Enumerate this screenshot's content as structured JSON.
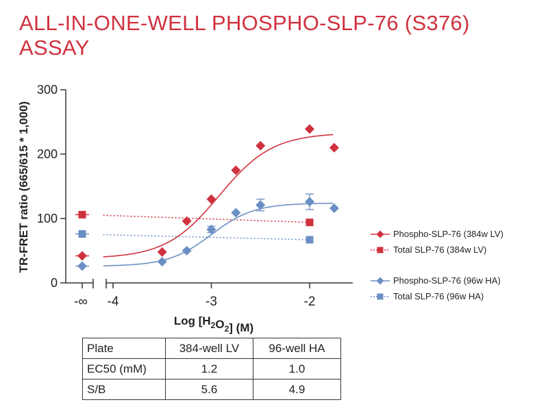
{
  "title": {
    "line1": "ALL-IN-ONE-WELL PHOSPHO-SLP-76 (S376)",
    "line2": "ASSAY"
  },
  "chart_data": {
    "type": "scatter",
    "xlabel": "Log [H2O2]  (M)",
    "ylabel": "TR-FRET ratio (665/615 * 1,000)",
    "xlim": [
      -4.1,
      -1.55
    ],
    "ylim": [
      0,
      300
    ],
    "x_ticks": [
      "-4",
      "-3",
      "-2"
    ],
    "y_ticks": [
      "0",
      "100",
      "200",
      "300"
    ],
    "break_tick": "-∞",
    "legend_placement": "right",
    "series": [
      {
        "name": "Phospho-SLP-76 (384w LV)",
        "color": "#d0313f",
        "marker": "diamond",
        "line": "solid",
        "baseline_value": 42,
        "x": [
          -3.5,
          -3.25,
          -3.0,
          -2.75,
          -2.5,
          -2.0,
          -1.75
        ],
        "y": [
          48,
          96,
          130,
          175,
          213,
          239,
          210
        ],
        "fit": {
          "bottom": 38,
          "top": 233,
          "logEC50": -2.92,
          "hill": 1.6
        }
      },
      {
        "name": "Total SLP-76 (384w LV)",
        "color": "#d0313f",
        "marker": "square",
        "line": "dotted",
        "baseline_value": 106,
        "x": [
          -2.0
        ],
        "y": [
          94
        ],
        "line_from": [
          -4.1,
          105
        ],
        "line_to": [
          -2.0,
          94
        ]
      },
      {
        "name": "Phospho-SLP-76 (96w HA)",
        "color": "#6b8fc5",
        "marker": "diamond",
        "line": "solid",
        "baseline_value": 26,
        "x": [
          -3.5,
          -3.25,
          -3.0,
          -2.75,
          -2.5,
          -2.0,
          -1.75
        ],
        "y": [
          33,
          50,
          83,
          109,
          121,
          126,
          116
        ],
        "err": [
          0,
          0,
          5,
          0,
          9,
          12,
          0
        ],
        "fit": {
          "bottom": 26,
          "top": 124,
          "logEC50": -3.0,
          "hill": 2.0
        }
      },
      {
        "name": "Total SLP-76 (96w HA)",
        "color": "#6b8fc5",
        "marker": "square",
        "line": "dotted",
        "baseline_value": 76,
        "x": [
          -2.0
        ],
        "y": [
          67
        ],
        "line_from": [
          -4.1,
          75
        ],
        "line_to": [
          -2.0,
          67
        ]
      }
    ]
  },
  "summary_table": {
    "header": [
      "Plate",
      "384-well LV",
      "96-well HA"
    ],
    "rows": [
      [
        "EC50 (mM)",
        "1.2",
        "1.0"
      ],
      [
        "S/B",
        "5.6",
        "4.9"
      ]
    ]
  }
}
